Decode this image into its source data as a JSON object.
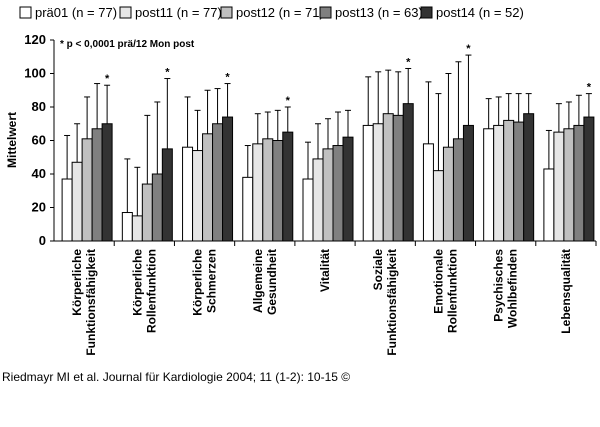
{
  "chart_data": {
    "type": "bar",
    "annotation": "* p < 0,0001 prä/12 Mon post",
    "ylabel": "Mittelwert",
    "ylim": [
      0,
      120
    ],
    "yticks": [
      0,
      20,
      40,
      60,
      80,
      100,
      120
    ],
    "categories": [
      [
        "Körperliche",
        "Funktionsfähigkeit"
      ],
      [
        "Körperliche",
        "Rollenfunktion"
      ],
      [
        "Körperliche",
        "Schmerzen"
      ],
      [
        "Allgemeine",
        "Gesundheit"
      ],
      [
        "Vitalität"
      ],
      [
        "Soziale",
        "Funktionsfähigkeit"
      ],
      [
        "Emotionale",
        "Rollenfunktion"
      ],
      [
        "Psychisches",
        "Wohlbefinden"
      ],
      [
        "Lebensqualität"
      ]
    ],
    "series": [
      {
        "name": "prä01 (n = 77)",
        "color": "#ffffff",
        "values": [
          37,
          17,
          56,
          38,
          37,
          69,
          58,
          67,
          43
        ],
        "error": [
          63,
          49,
          86,
          57,
          59,
          98,
          95,
          85,
          66
        ]
      },
      {
        "name": "post11 (n = 77)",
        "color": "#e6e6e6",
        "values": [
          47,
          15,
          54,
          58,
          49,
          70,
          42,
          69,
          65
        ],
        "error": [
          70,
          44,
          78,
          76,
          70,
          101,
          88,
          86,
          82
        ]
      },
      {
        "name": "post12 (n = 71)",
        "color": "#c0c0c0",
        "values": [
          61,
          34,
          64,
          61,
          55,
          76,
          56,
          72,
          67
        ],
        "error": [
          86,
          75,
          90,
          77,
          73,
          102,
          100,
          88,
          83
        ]
      },
      {
        "name": "post13 (n = 63)",
        "color": "#808080",
        "values": [
          67,
          40,
          70,
          60,
          57,
          75,
          61,
          71,
          69
        ],
        "error": [
          94,
          83,
          91,
          78,
          77,
          101,
          107,
          88,
          87
        ]
      },
      {
        "name": "post14 (n = 52)",
        "color": "#333333",
        "values": [
          70,
          55,
          74,
          65,
          62,
          82,
          69,
          76,
          74
        ],
        "error": [
          93,
          97,
          94,
          80,
          78,
          103,
          111,
          88,
          88
        ]
      }
    ],
    "significant_categories": [
      0,
      1,
      2,
      3,
      5,
      6,
      8
    ],
    "significance_marker": "*",
    "legend_position": "top",
    "grid": false
  },
  "source": "Riedmayr MI et al. Journal für Kardiologie 2004; 11 (1-2): 10-15 ©"
}
